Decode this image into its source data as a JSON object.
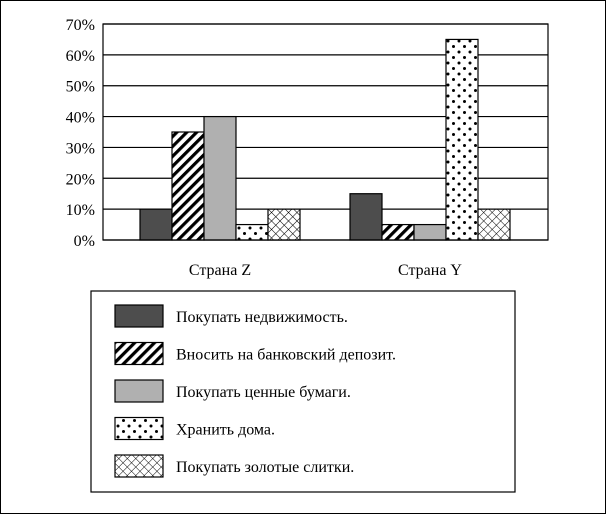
{
  "chart_data": {
    "type": "bar",
    "categories": [
      "Страна Z",
      "Страна Y"
    ],
    "series": [
      {
        "name": "Покупать недвижимость.",
        "values": [
          10,
          15
        ],
        "color": "#4d4d4d",
        "pattern": "solid-dark"
      },
      {
        "name": "Вносить на банковский депозит.",
        "values": [
          35,
          5
        ],
        "color": "#ffffff",
        "pattern": "diagonal-stripes"
      },
      {
        "name": "Покупать ценные бумаги.",
        "values": [
          40,
          5
        ],
        "color": "#b0b0b0",
        "pattern": "solid-light"
      },
      {
        "name": "Хранить дома.",
        "values": [
          5,
          65
        ],
        "color": "#ffffff",
        "pattern": "dots"
      },
      {
        "name": "Покупать золотые слитки.",
        "values": [
          10,
          10
        ],
        "color": "#ffffff",
        "pattern": "crosshatch"
      }
    ],
    "ylim": [
      0,
      70
    ],
    "yticks": [
      "0%",
      "10%",
      "20%",
      "30%",
      "40%",
      "50%",
      "60%",
      "70%"
    ],
    "grid": true,
    "legend_position": "bottom"
  }
}
